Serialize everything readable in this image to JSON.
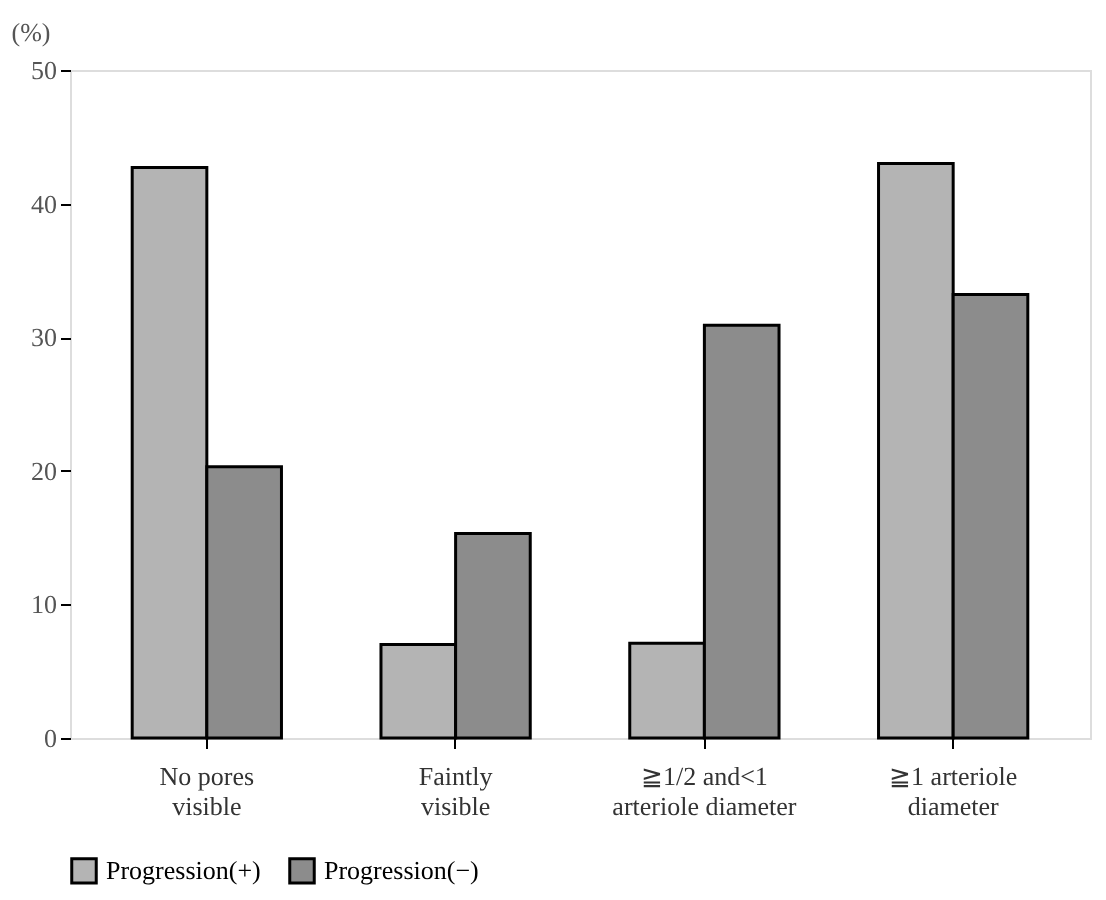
{
  "chart_data": {
    "type": "bar",
    "ylabel": "(%)",
    "categories": [
      "No pores\nvisible",
      "Faintly\nvisible",
      "≧1/2 and<1\narteriole diameter",
      "≧1  arteriole\ndiameter"
    ],
    "series": [
      {
        "name": "Progression(+)",
        "color": "#b4b4b4",
        "values": [
          42.7,
          7.0,
          7.1,
          43.0
        ]
      },
      {
        "name": "Progression(−)",
        "color": "#8c8c8c",
        "values": [
          20.3,
          15.3,
          30.9,
          33.2
        ]
      }
    ],
    "ylim": [
      0,
      50
    ],
    "yticks": [
      0,
      10,
      20,
      30,
      40,
      50
    ],
    "grid": false,
    "legend": "bottom"
  }
}
